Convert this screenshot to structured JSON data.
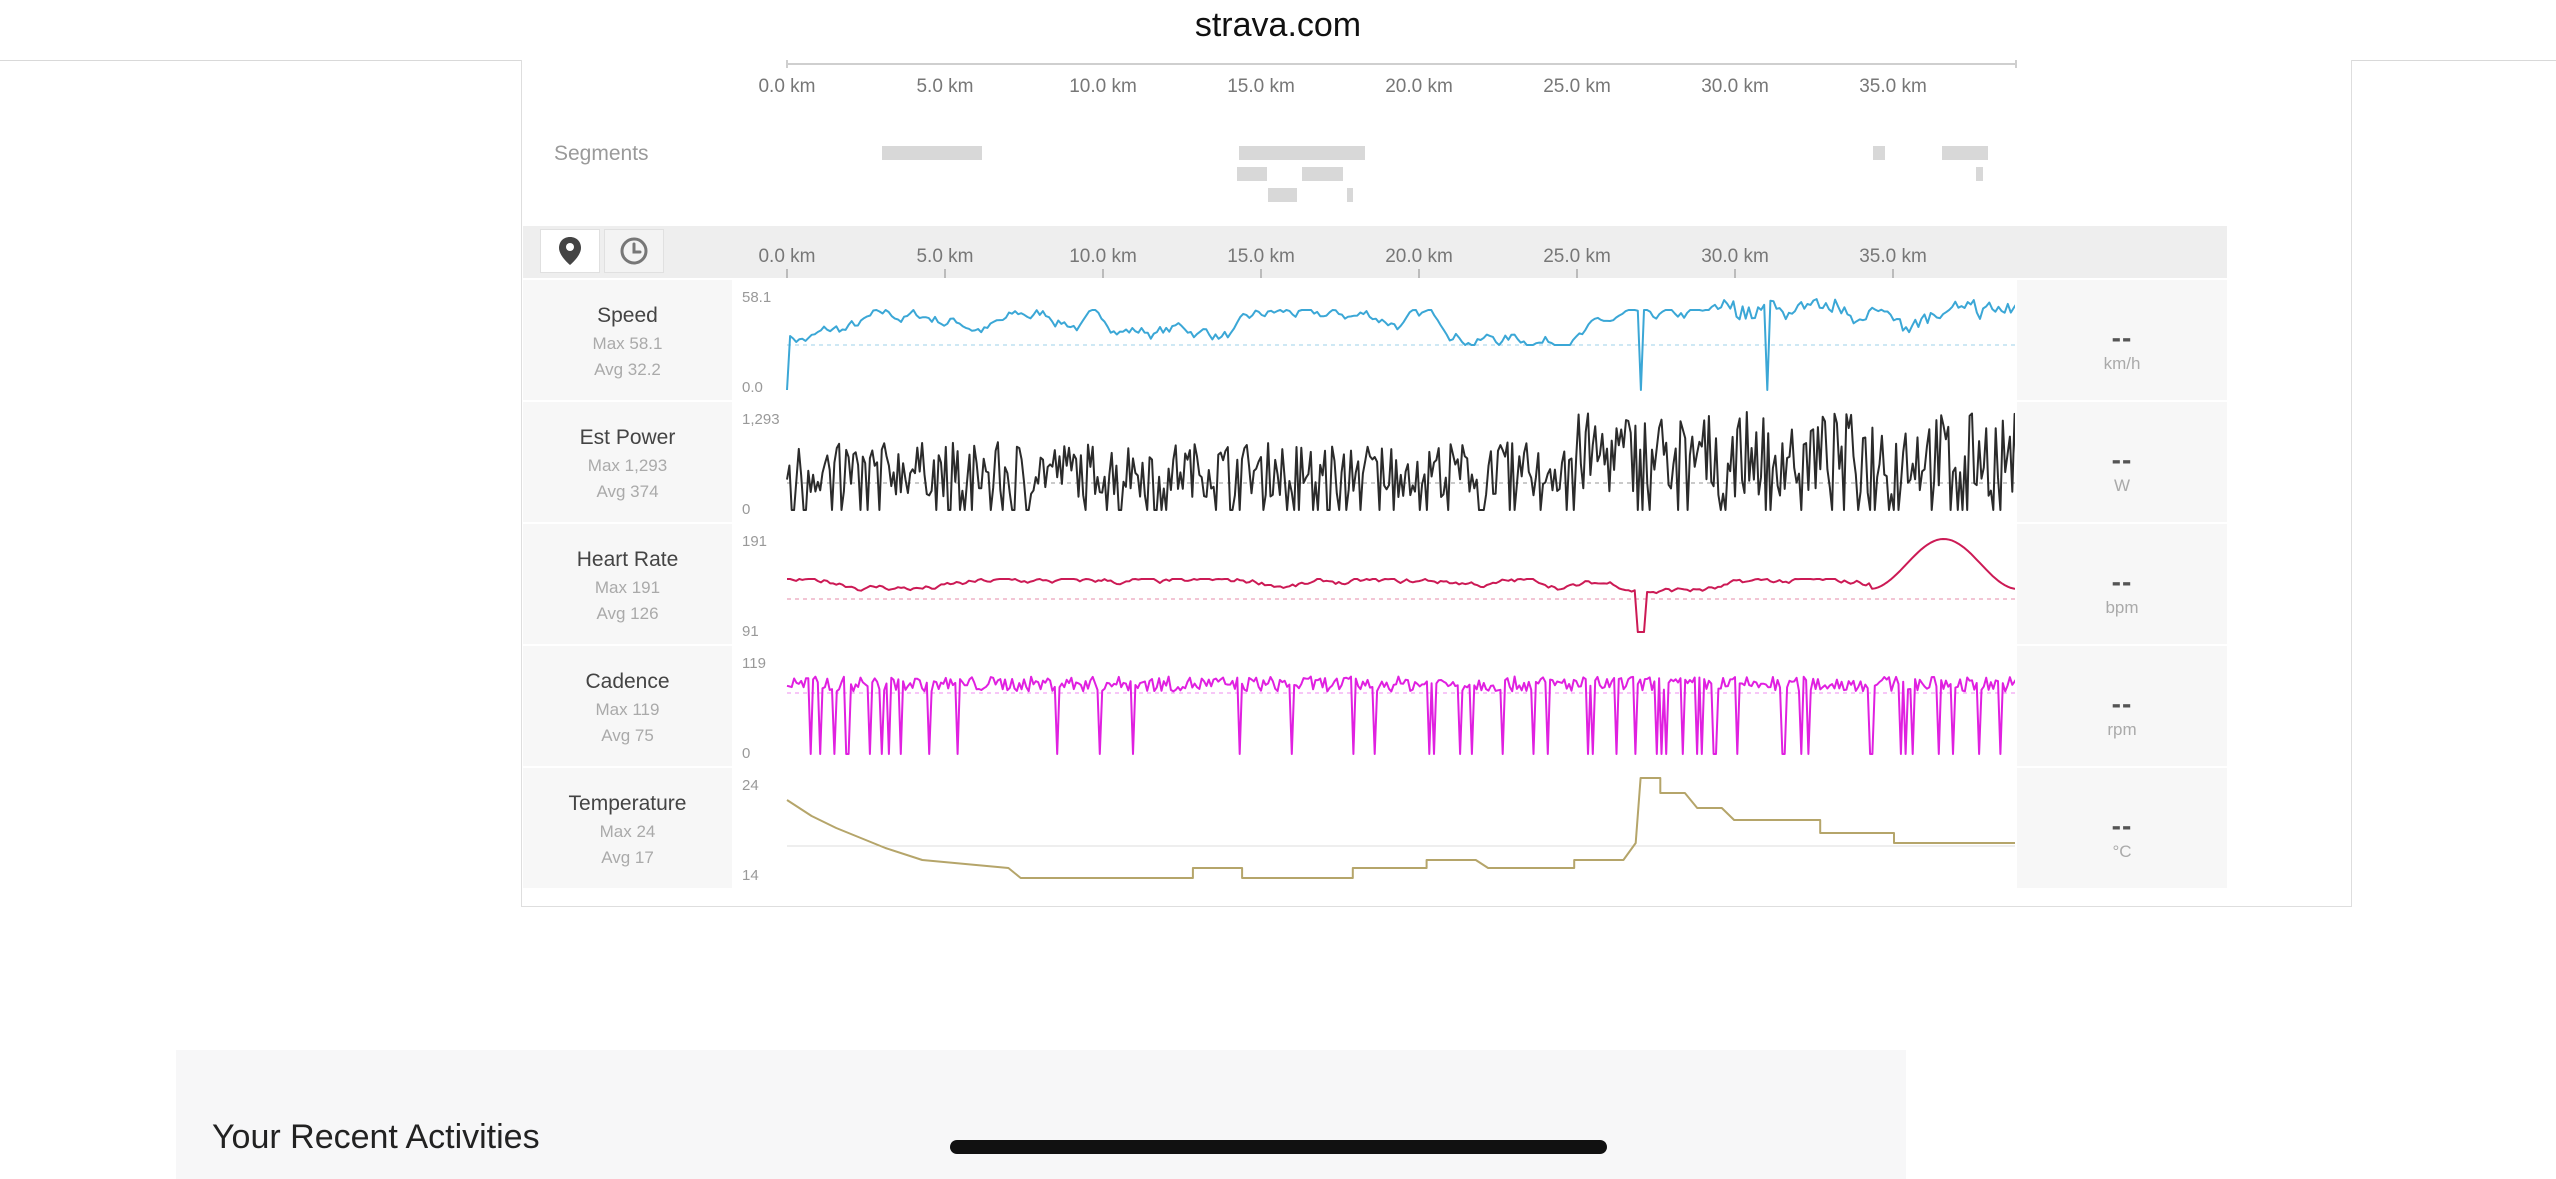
{
  "browser": {
    "url": "strava.com"
  },
  "axis_top": {
    "ticks": [
      "0.0 km",
      "5.0 km",
      "10.0 km",
      "15.0 km",
      "20.0 km",
      "25.0 km",
      "30.0 km",
      "35.0 km"
    ]
  },
  "segments": {
    "label": "Segments"
  },
  "toolbar": {
    "distance_icon": "map-pin-icon",
    "time_icon": "clock-icon"
  },
  "axis_main": {
    "ticks": [
      "0.0 km",
      "5.0 km",
      "10.0 km",
      "15.0 km",
      "20.0 km",
      "25.0 km",
      "30.0 km",
      "35.0 km"
    ]
  },
  "rows": [
    {
      "name": "Speed",
      "max": "Max 58.1",
      "avg": "Avg 32.2",
      "ymax": "58.1",
      "ymin": "0.0",
      "value": "--",
      "unit": "km/h",
      "color": "#3ba7d6"
    },
    {
      "name": "Est Power",
      "max": "Max 1,293",
      "avg": "Avg 374",
      "ymax": "1,293",
      "ymin": "0",
      "value": "--",
      "unit": "W",
      "color": "#2b2b2b"
    },
    {
      "name": "Heart Rate",
      "max": "Max 191",
      "avg": "Avg 126",
      "ymax": "191",
      "ymin": "91",
      "value": "--",
      "unit": "bpm",
      "color": "#cc1a55"
    },
    {
      "name": "Cadence",
      "max": "Max 119",
      "avg": "Avg 75",
      "ymax": "119",
      "ymin": "0",
      "value": "--",
      "unit": "rpm",
      "color": "#e020e0"
    },
    {
      "name": "Temperature",
      "max": "Max 24",
      "avg": "Avg 17",
      "ymax": "24",
      "ymin": "14",
      "value": "--",
      "unit": "°C",
      "color": "#b5a56a"
    }
  ],
  "recent": {
    "title": "Your Recent Activities"
  }
}
